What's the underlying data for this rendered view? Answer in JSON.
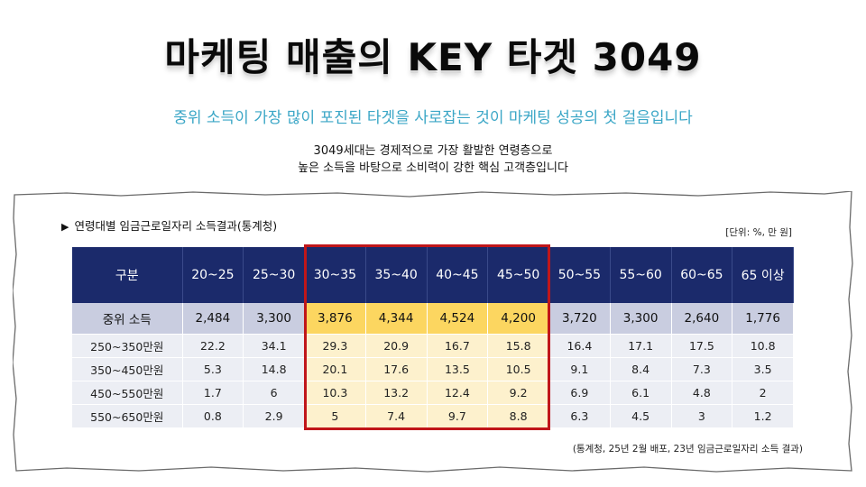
{
  "header": {
    "title": "마케팅 매출의 KEY 타겟 3049",
    "subtitle": "중위 소득이 가장 많이 포진된 타겟을 사로잡는 것이 마케팅 성공의 첫 걸음입니다",
    "desc_line1": "3049세대는 경제적으로 가장 활발한 연령층으로",
    "desc_line2": "높은 소득을 바탕으로 소비력이 강한 핵심 고객층입니다"
  },
  "table_section": {
    "caption_marker": "▶",
    "caption": "연령대별 임금근로일자리 소득결과(통계청)",
    "unit": "[단위: %, 만 원]",
    "source": "(통계청, 25년 2월 배포, 23년 임금근로일자리 소득 결과)",
    "headers": [
      "구분",
      "20~25",
      "25~30",
      "30~35",
      "35~40",
      "40~45",
      "45~50",
      "50~55",
      "55~60",
      "60~65",
      "65 이상"
    ],
    "median_row": [
      "중위 소득",
      "2,484",
      "3,300",
      "3,876",
      "4,344",
      "4,524",
      "4,200",
      "3,720",
      "3,300",
      "2,640",
      "1,776"
    ],
    "rows": [
      [
        "250~350만원",
        "22.2",
        "34.1",
        "29.3",
        "20.9",
        "16.7",
        "15.8",
        "16.4",
        "17.1",
        "17.5",
        "10.8"
      ],
      [
        "350~450만원",
        "5.3",
        "14.8",
        "20.1",
        "17.6",
        "13.5",
        "10.5",
        "9.1",
        "8.4",
        "7.3",
        "3.5"
      ],
      [
        "450~550만원",
        "1.7",
        "6",
        "10.3",
        "13.2",
        "12.4",
        "9.2",
        "6.9",
        "6.1",
        "4.8",
        "2"
      ],
      [
        "550~650만원",
        "0.8",
        "2.9",
        "5",
        "7.4",
        "9.7",
        "8.8",
        "6.3",
        "4.5",
        "3",
        "1.2"
      ]
    ],
    "highlight_columns": [
      "30~35",
      "35~40",
      "40~45",
      "45~50"
    ]
  },
  "colors": {
    "header_bg": "#1b2a6b",
    "median_bg": "#c9cde0",
    "median_highlight": "#fcd660",
    "body_bg": "#eceef4",
    "body_highlight": "#fdf1cd",
    "highlight_border": "#c0161a",
    "subtitle": "#3aa6c6"
  }
}
